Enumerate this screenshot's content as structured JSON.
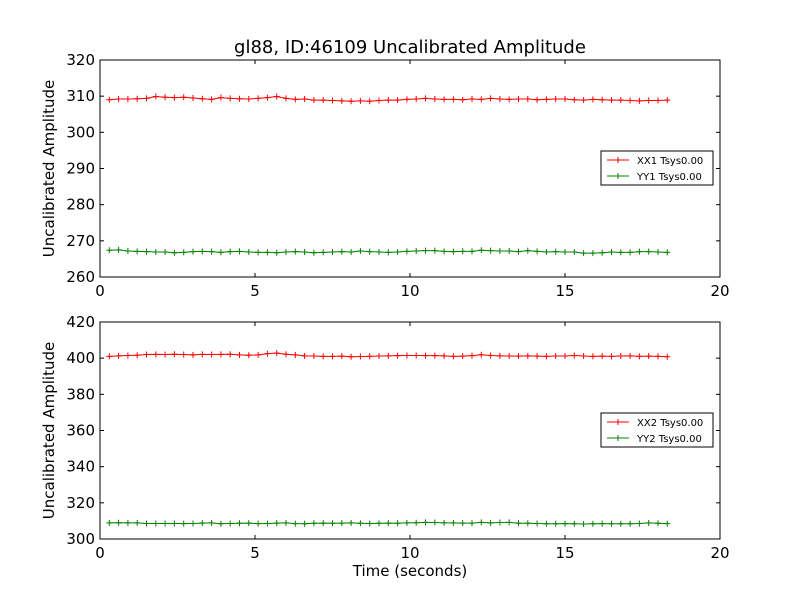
{
  "title": "gl88, ID:46109 Uncalibrated Amplitude",
  "xlabel": "Time (seconds)",
  "colors": {
    "series_xx": "#ff0000",
    "series_yy": "#008000"
  },
  "chart_data": [
    {
      "type": "line",
      "title": "gl88, ID:46109 Uncalibrated Amplitude",
      "xlabel": "",
      "ylabel": "Uncalibrated Amplitude",
      "xlim": [
        0,
        20
      ],
      "ylim": [
        260,
        320
      ],
      "xticks": [
        "0",
        "5",
        "10",
        "15",
        "20"
      ],
      "yticks": [
        "260",
        "270",
        "280",
        "290",
        "300",
        "310",
        "320"
      ],
      "xtick_values": [
        0,
        5,
        10,
        15,
        20
      ],
      "ytick_values": [
        260,
        270,
        280,
        290,
        300,
        310,
        320
      ],
      "grid": false,
      "legend_position": "center-right",
      "x": [
        0.3,
        0.6,
        0.9,
        1.2,
        1.5,
        1.8,
        2.1,
        2.4,
        2.7,
        3.0,
        3.3,
        3.6,
        3.9,
        4.2,
        4.5,
        4.8,
        5.1,
        5.4,
        5.7,
        6.0,
        6.3,
        6.6,
        6.9,
        7.2,
        7.5,
        7.8,
        8.1,
        8.4,
        8.7,
        9.0,
        9.3,
        9.6,
        9.9,
        10.2,
        10.5,
        10.8,
        11.1,
        11.4,
        11.7,
        12.0,
        12.3,
        12.6,
        12.9,
        13.2,
        13.5,
        13.8,
        14.1,
        14.4,
        14.7,
        15.0,
        15.3,
        15.6,
        15.9,
        16.2,
        16.5,
        16.8,
        17.1,
        17.4,
        17.7,
        18.0,
        18.3
      ],
      "series": [
        {
          "name": "XX1 Tsys0.00",
          "color": "#ff0000",
          "values": [
            309.0,
            309.2,
            309.2,
            309.3,
            309.4,
            309.9,
            309.7,
            309.6,
            309.7,
            309.5,
            309.3,
            309.1,
            309.6,
            309.4,
            309.3,
            309.2,
            309.4,
            309.6,
            309.9,
            309.4,
            309.1,
            309.2,
            308.9,
            308.9,
            308.8,
            308.7,
            308.6,
            308.7,
            308.6,
            308.8,
            308.9,
            308.9,
            309.1,
            309.2,
            309.4,
            309.2,
            309.1,
            309.1,
            309.0,
            309.2,
            309.1,
            309.4,
            309.2,
            309.1,
            309.2,
            309.2,
            309.0,
            309.1,
            309.2,
            309.2,
            309.0,
            308.9,
            309.1,
            309.0,
            308.9,
            308.9,
            308.8,
            308.7,
            308.8,
            308.8,
            308.9
          ]
        },
        {
          "name": "YY1 Tsys0.00",
          "color": "#008000",
          "values": [
            267.4,
            267.5,
            267.2,
            267.1,
            267.0,
            266.9,
            266.9,
            266.7,
            266.8,
            267.0,
            267.1,
            267.0,
            266.8,
            267.0,
            267.1,
            266.9,
            266.8,
            266.8,
            266.7,
            266.9,
            267.0,
            266.9,
            266.7,
            266.8,
            266.9,
            267.0,
            266.9,
            267.2,
            267.0,
            266.9,
            266.8,
            266.9,
            267.1,
            267.2,
            267.3,
            267.3,
            267.1,
            267.0,
            267.1,
            267.1,
            267.4,
            267.3,
            267.2,
            267.2,
            267.0,
            267.3,
            267.1,
            266.9,
            267.0,
            266.9,
            266.9,
            266.6,
            266.6,
            266.7,
            266.9,
            266.8,
            266.8,
            267.0,
            267.0,
            266.9,
            266.8
          ]
        }
      ]
    },
    {
      "type": "line",
      "title": "",
      "xlabel": "Time (seconds)",
      "ylabel": "Uncalibrated Amplitude",
      "xlim": [
        0,
        20
      ],
      "ylim": [
        300,
        420
      ],
      "xticks": [
        "0",
        "5",
        "10",
        "15",
        "20"
      ],
      "yticks": [
        "300",
        "320",
        "340",
        "360",
        "380",
        "400",
        "420"
      ],
      "xtick_values": [
        0,
        5,
        10,
        15,
        20
      ],
      "ytick_values": [
        300,
        320,
        340,
        360,
        380,
        400,
        420
      ],
      "grid": false,
      "legend_position": "center-right",
      "x": [
        0.3,
        0.6,
        0.9,
        1.2,
        1.5,
        1.8,
        2.1,
        2.4,
        2.7,
        3.0,
        3.3,
        3.6,
        3.9,
        4.2,
        4.5,
        4.8,
        5.1,
        5.4,
        5.7,
        6.0,
        6.3,
        6.6,
        6.9,
        7.2,
        7.5,
        7.8,
        8.1,
        8.4,
        8.7,
        9.0,
        9.3,
        9.6,
        9.9,
        10.2,
        10.5,
        10.8,
        11.1,
        11.4,
        11.7,
        12.0,
        12.3,
        12.6,
        12.9,
        13.2,
        13.5,
        13.8,
        14.1,
        14.4,
        14.7,
        15.0,
        15.3,
        15.6,
        15.9,
        16.2,
        16.5,
        16.8,
        17.1,
        17.4,
        17.7,
        18.0,
        18.3
      ],
      "series": [
        {
          "name": "XX2 Tsys0.00",
          "color": "#ff0000",
          "values": [
            401.0,
            401.3,
            401.5,
            401.6,
            402.0,
            402.1,
            402.0,
            402.2,
            402.0,
            401.8,
            402.1,
            402.0,
            402.1,
            402.2,
            401.8,
            401.6,
            401.8,
            402.5,
            402.8,
            402.2,
            401.8,
            401.3,
            401.2,
            401.0,
            401.0,
            401.1,
            400.8,
            400.9,
            401.0,
            401.2,
            401.3,
            401.4,
            401.5,
            401.5,
            401.4,
            401.4,
            401.3,
            401.0,
            401.1,
            401.4,
            401.9,
            401.5,
            401.3,
            401.2,
            401.1,
            401.3,
            401.1,
            401.0,
            401.2,
            401.2,
            401.5,
            401.2,
            401.0,
            401.1,
            401.0,
            401.2,
            401.3,
            401.0,
            401.1,
            401.0,
            400.8
          ]
        },
        {
          "name": "YY2 Tsys0.00",
          "color": "#008000",
          "values": [
            308.9,
            309.0,
            308.9,
            308.9,
            308.6,
            308.6,
            308.6,
            308.6,
            308.5,
            308.6,
            308.8,
            308.9,
            308.4,
            308.6,
            308.7,
            308.8,
            308.5,
            308.6,
            308.8,
            308.9,
            308.5,
            308.4,
            308.7,
            308.8,
            308.7,
            308.8,
            308.9,
            308.7,
            308.6,
            308.7,
            308.8,
            308.7,
            308.9,
            309.0,
            309.2,
            309.1,
            308.9,
            308.9,
            308.8,
            308.8,
            309.2,
            308.9,
            309.1,
            309.2,
            308.7,
            308.7,
            308.6,
            308.4,
            308.4,
            308.5,
            308.4,
            308.3,
            308.4,
            308.5,
            308.4,
            308.4,
            308.4,
            308.6,
            308.9,
            308.7,
            308.5
          ]
        }
      ]
    }
  ]
}
